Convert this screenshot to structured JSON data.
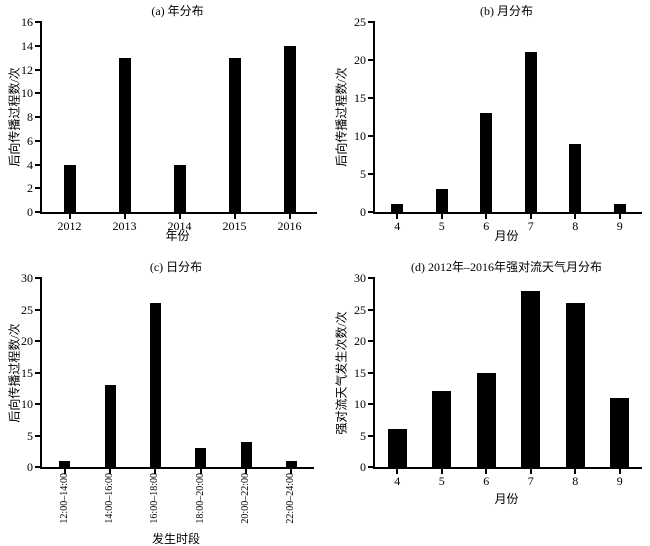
{
  "figure": {
    "background": "#ffffff",
    "bar_color": "#000000",
    "axis_color": "#000000",
    "text_color": "#000000"
  },
  "chart_data": [
    {
      "id": "a",
      "type": "bar",
      "title": "(a) 年分布",
      "xlabel": "年份",
      "ylabel": "后向传播过程数/次",
      "categories": [
        "2012",
        "2013",
        "2014",
        "2015",
        "2016"
      ],
      "values": [
        4,
        13,
        4,
        13,
        14
      ],
      "ylim": [
        0,
        16
      ],
      "yticks": [
        0,
        2,
        4,
        6,
        8,
        10,
        12,
        14,
        16
      ],
      "grid": false,
      "legend": false,
      "xtick_rotation": 0
    },
    {
      "id": "b",
      "type": "bar",
      "title": "(b) 月分布",
      "xlabel": "月份",
      "ylabel": "后向传播过程数/次",
      "categories": [
        "4",
        "5",
        "6",
        "7",
        "8",
        "9"
      ],
      "values": [
        1,
        3,
        13,
        21,
        9,
        1
      ],
      "ylim": [
        0,
        25
      ],
      "yticks": [
        0,
        5,
        10,
        15,
        20,
        25
      ],
      "grid": false,
      "legend": false,
      "xtick_rotation": 0
    },
    {
      "id": "c",
      "type": "bar",
      "title": "(c) 日分布",
      "xlabel": "发生时段",
      "ylabel": "后向传播过程数/次",
      "categories": [
        "12:00–14:00",
        "14:00–16:00",
        "16:00–18:00",
        "18:00–20:00",
        "20:00–22:00",
        "22:00–24:00"
      ],
      "values": [
        1,
        13,
        26,
        3,
        4,
        1
      ],
      "ylim": [
        0,
        30
      ],
      "yticks": [
        0,
        5,
        10,
        15,
        20,
        25,
        30
      ],
      "grid": false,
      "legend": false,
      "xtick_rotation": 90
    },
    {
      "id": "d",
      "type": "bar",
      "title": "(d) 2012年–2016年强对流天气月分布",
      "xlabel": "月份",
      "ylabel": "强对流天气发生次数/次",
      "categories": [
        "4",
        "5",
        "6",
        "7",
        "8",
        "9"
      ],
      "values": [
        6,
        12,
        15,
        28,
        26,
        11
      ],
      "ylim": [
        0,
        30
      ],
      "yticks": [
        0,
        5,
        10,
        15,
        20,
        25,
        30
      ],
      "grid": false,
      "legend": false,
      "xtick_rotation": 0
    }
  ]
}
